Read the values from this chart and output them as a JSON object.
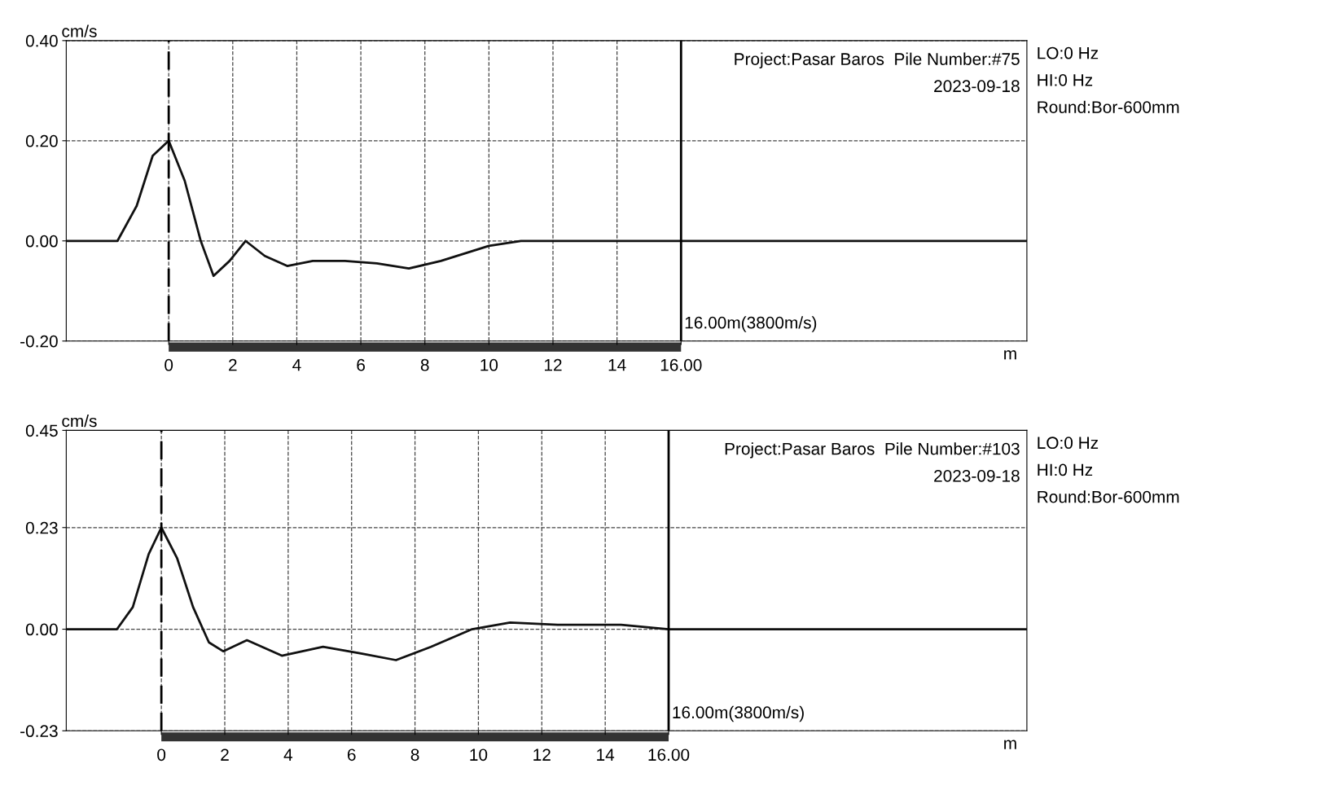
{
  "chart_data": [
    {
      "type": "line",
      "ylabel": "cm/s",
      "xlabel": "m",
      "annotations": [
        "Project:Pasar Baros  Pile Number:#75",
        "2023-09-18",
        "LO:0 Hz",
        "HI:0 Hz",
        "Round:Bor-600mm"
      ],
      "series": [
        {
          "color": "#111111",
          "x": [
            -3.2,
            -1.6,
            -1.0,
            -0.5,
            0,
            0.5,
            1.0,
            1.4,
            1.9,
            2.4,
            3.0,
            3.7,
            4.5,
            5.5,
            6.5,
            7.5,
            8.5,
            10.0,
            11.0,
            12.0,
            14.0,
            16.0,
            20.0,
            26.8
          ],
          "values": [
            0,
            0,
            0.07,
            0.17,
            0.2,
            0.12,
            0.0,
            -0.07,
            -0.04,
            0.0,
            -0.03,
            -0.05,
            -0.04,
            -0.04,
            -0.045,
            -0.055,
            -0.04,
            -0.01,
            0.0,
            0.0,
            0.0,
            0.0,
            0.0,
            0.0
          ]
        }
      ],
      "xlim": [
        -3.2,
        26.8
      ],
      "xticks": [
        0,
        2,
        4,
        6,
        8,
        10,
        12,
        14,
        {
          "value": 16,
          "label": "16.00"
        }
      ],
      "ylim": [
        -0.2,
        0.4
      ],
      "yticks": [
        {
          "value": -0.2,
          "label": "-0.20"
        },
        {
          "value": 0,
          "label": "0.00"
        },
        {
          "value": 0.2,
          "label": "0.20"
        },
        {
          "value": 0.4,
          "label": "0.40"
        }
      ],
      "ref_lines": [
        {
          "axis": "x",
          "value": 0,
          "label": null,
          "line_style": "dashed"
        },
        {
          "axis": "x",
          "value": 16,
          "label": "16.00m(3800m/s)",
          "line_style": "solid"
        }
      ],
      "grid": true,
      "legend": false,
      "marker": "none",
      "line_style": "solid"
    },
    {
      "type": "line",
      "ylabel": "cm/s",
      "xlabel": "m",
      "annotations": [
        "Project:Pasar Baros  Pile Number:#103",
        "2023-09-18",
        "LO:0 Hz",
        "HI:0 Hz",
        "Round:Bor-600mm"
      ],
      "series": [
        {
          "color": "#111111",
          "x": [
            -3.0,
            -1.4,
            -0.9,
            -0.4,
            0,
            0.5,
            1.0,
            1.5,
            1.95,
            2.7,
            3.8,
            5.1,
            6.3,
            7.4,
            8.5,
            9.8,
            11.0,
            12.5,
            14.5,
            16.0,
            20.0,
            27.3
          ],
          "values": [
            0,
            0,
            0.05,
            0.17,
            0.23,
            0.16,
            0.05,
            -0.03,
            -0.05,
            -0.025,
            -0.06,
            -0.04,
            -0.055,
            -0.07,
            -0.04,
            0.0,
            0.015,
            0.01,
            0.01,
            0.0,
            0.0,
            0.0
          ]
        }
      ],
      "xlim": [
        -3.0,
        27.3
      ],
      "xticks": [
        0,
        2,
        4,
        6,
        8,
        10,
        12,
        14,
        {
          "value": 16,
          "label": "16.00"
        }
      ],
      "ylim": [
        -0.23,
        0.45
      ],
      "yticks": [
        {
          "value": -0.23,
          "label": "-0.23"
        },
        {
          "value": 0,
          "label": "0.00"
        },
        {
          "value": 0.23,
          "label": "0.23"
        },
        {
          "value": 0.45,
          "label": "0.45"
        }
      ],
      "ref_lines": [
        {
          "axis": "x",
          "value": 0,
          "label": null,
          "line_style": "dashed"
        },
        {
          "axis": "x",
          "value": 16,
          "label": "16.00m(3800m/s)",
          "line_style": "solid"
        }
      ],
      "grid": true,
      "legend": false,
      "marker": "none",
      "line_style": "solid"
    }
  ]
}
